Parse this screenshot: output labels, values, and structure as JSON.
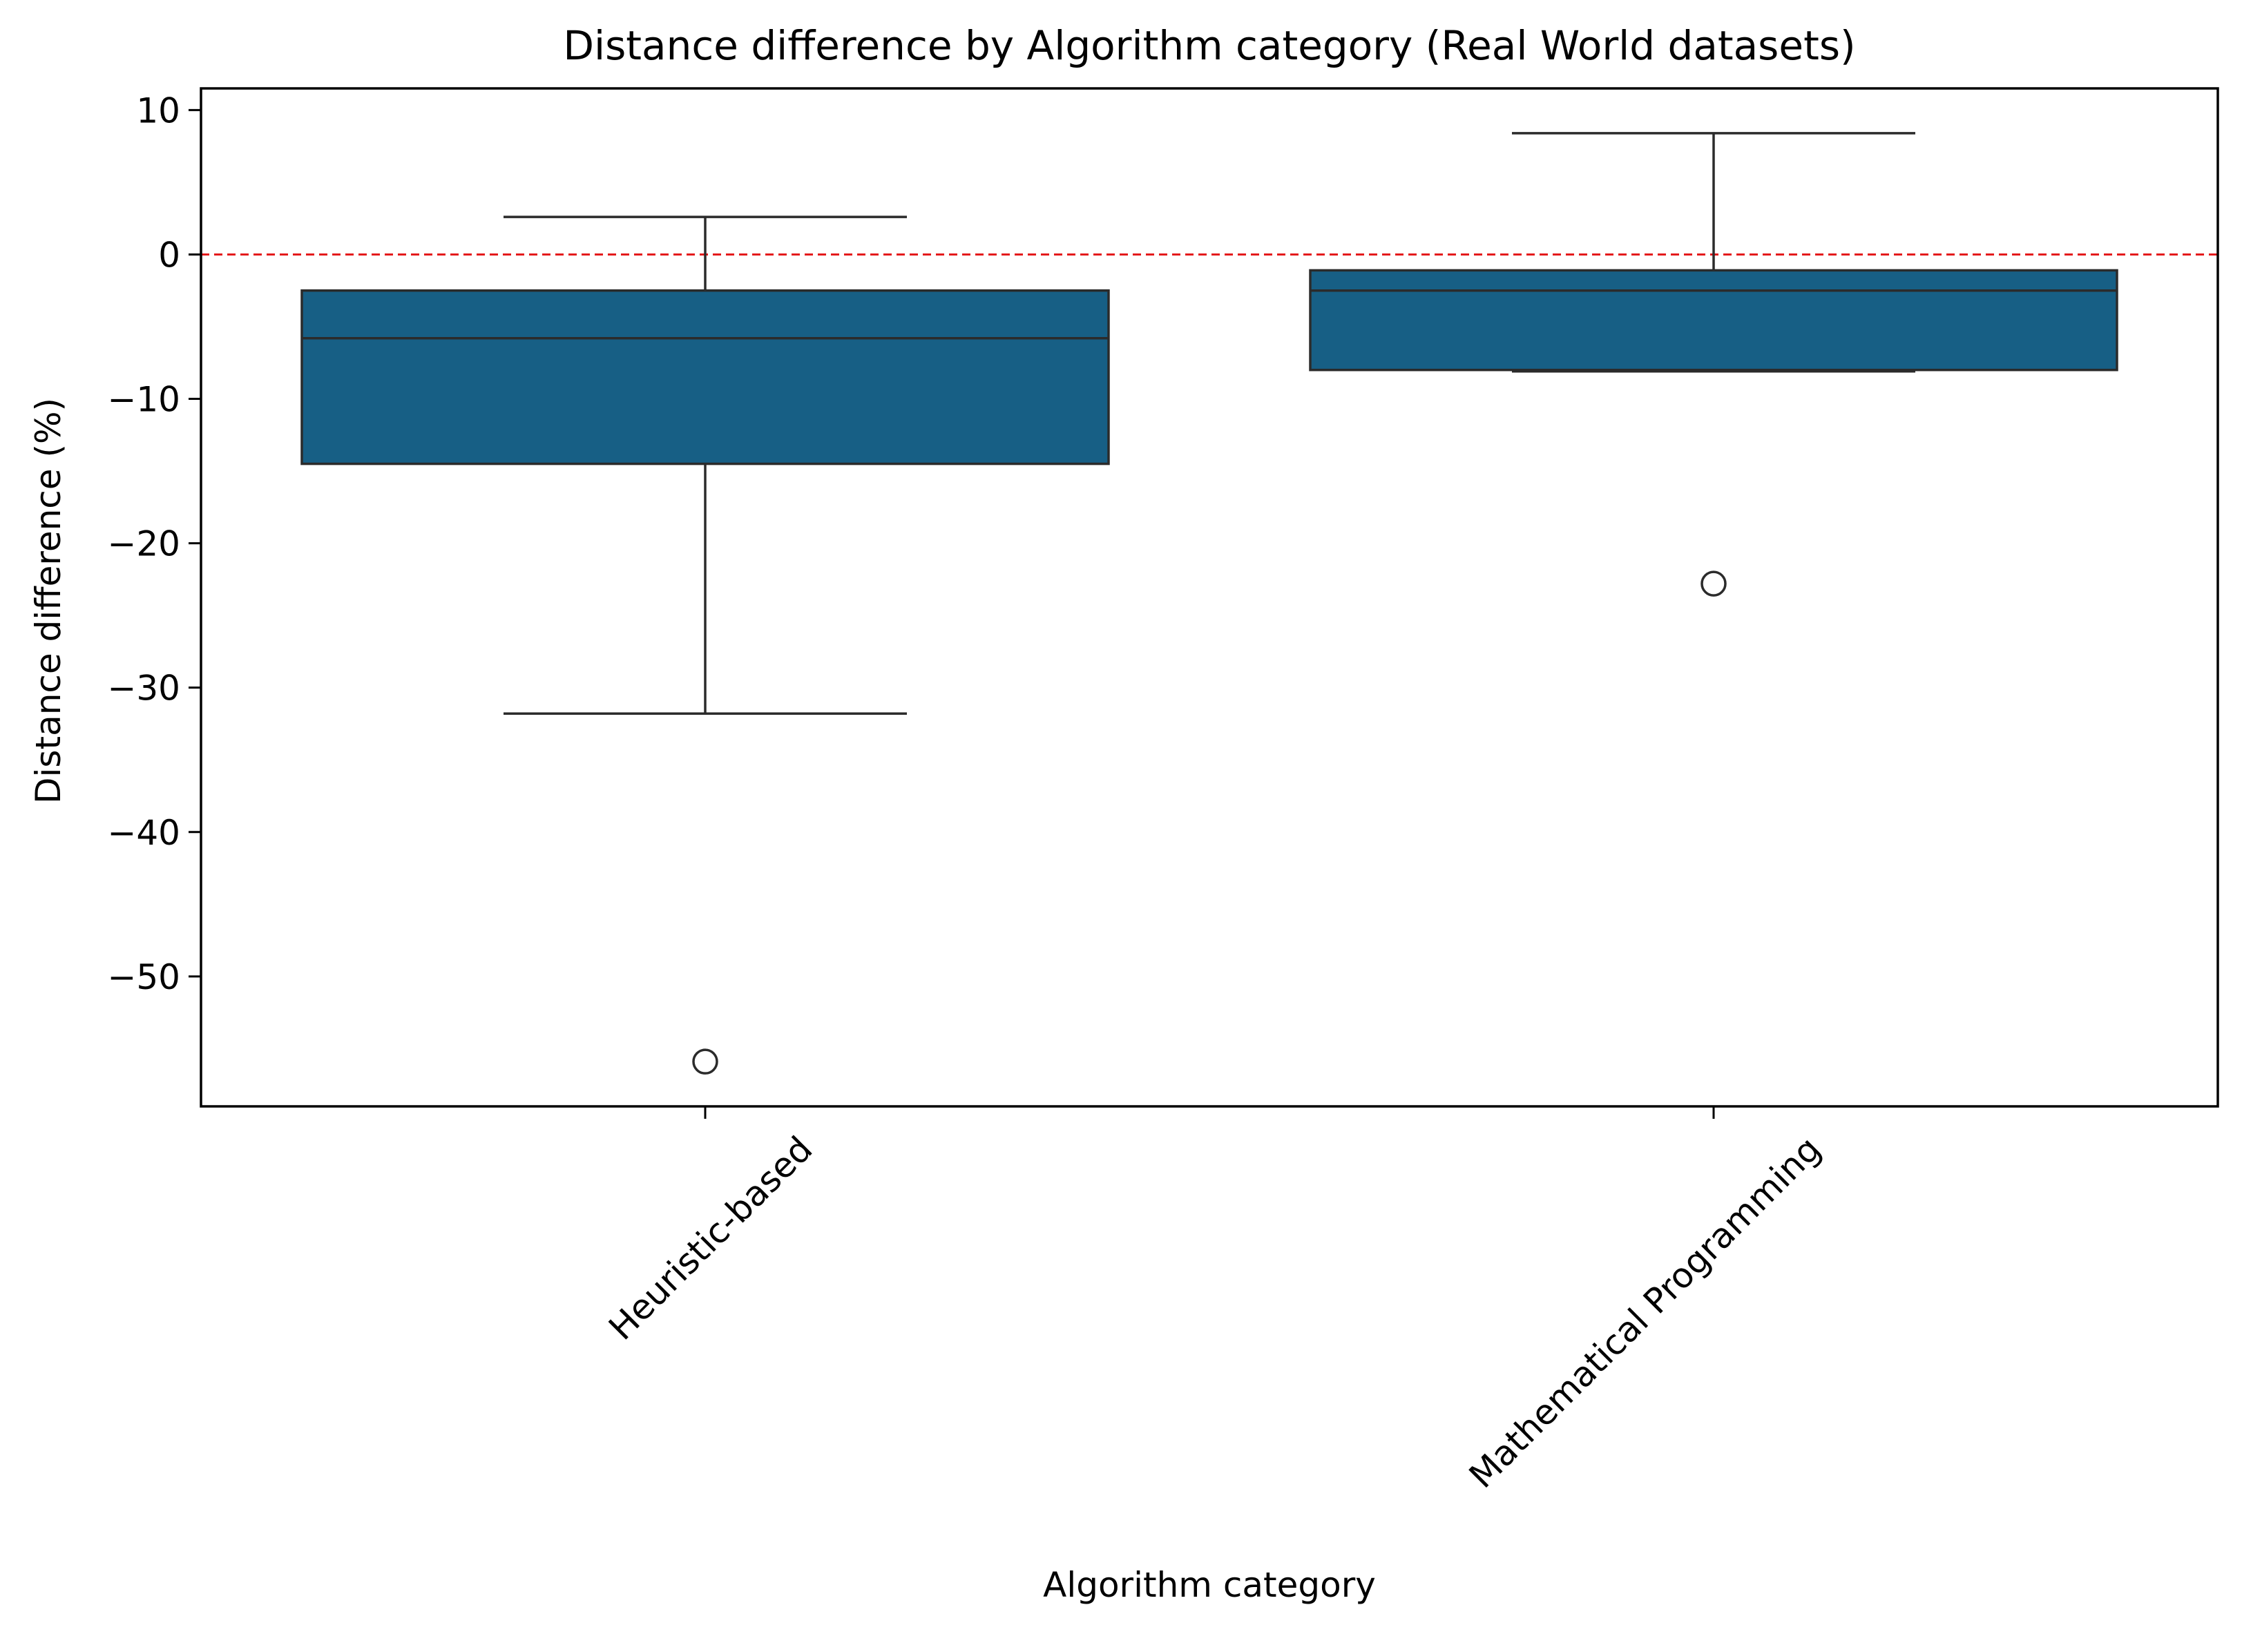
{
  "chart_data": {
    "type": "box",
    "title": "Distance difference by Algorithm category (Real World datasets)",
    "xlabel": "Algorithm category",
    "ylabel": "Distance difference (%)",
    "ylim": [
      -59,
      11.5
    ],
    "yticks": [
      10,
      0,
      -10,
      -20,
      -30,
      -40,
      -50
    ],
    "ytick_labels": [
      "10",
      "0",
      "−10",
      "−20",
      "−30",
      "−40",
      "−50"
    ],
    "grid": false,
    "reference_line": {
      "y": 0,
      "style": "dashed",
      "color": "#e41a1c"
    },
    "box_color": "#175f85",
    "edge_color": "#2b2b2b",
    "categories": [
      "Heuristic-based",
      "Mathematical Programming"
    ],
    "boxes": [
      {
        "category": "Heuristic-based",
        "whisker_low": -31.8,
        "q1": -14.5,
        "median": -5.8,
        "q3": -2.5,
        "whisker_high": 2.6,
        "outliers": [
          -55.9
        ]
      },
      {
        "category": "Mathematical Programming",
        "whisker_low": -8.1,
        "q1": -8.0,
        "median": -2.5,
        "q3": -1.1,
        "whisker_high": 8.4,
        "outliers": [
          -22.8
        ]
      }
    ]
  }
}
